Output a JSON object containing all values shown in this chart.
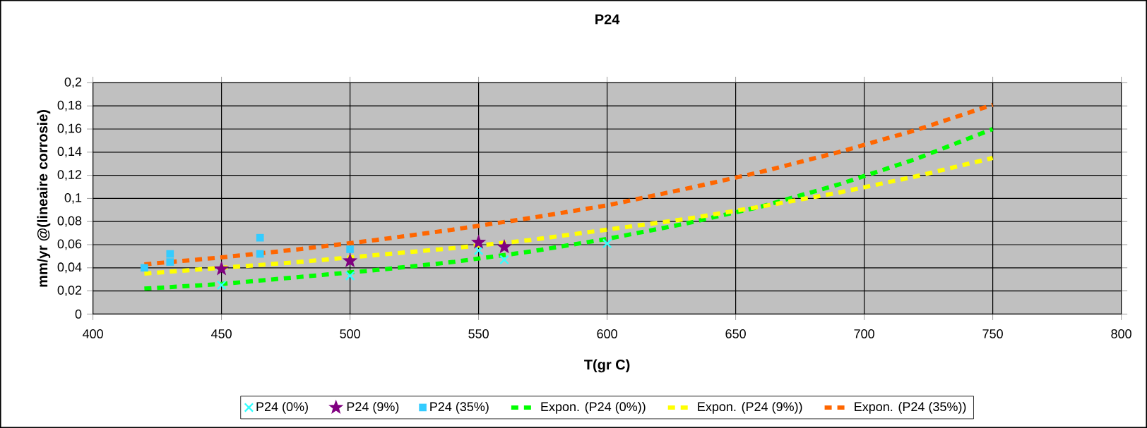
{
  "chart_data": {
    "type": "scatter",
    "title": "P24",
    "xlabel": "T(gr C)",
    "ylabel": "mm/yr @(lineaire corrosie)",
    "xlim": [
      400,
      800
    ],
    "ylim": [
      0,
      0.2
    ],
    "xticks": [
      400,
      450,
      500,
      550,
      600,
      650,
      700,
      750,
      800
    ],
    "yticks": [
      {
        "value": 0,
        "label": "0"
      },
      {
        "value": 0.02,
        "label": "0,02"
      },
      {
        "value": 0.04,
        "label": "0,04"
      },
      {
        "value": 0.06,
        "label": "0,06"
      },
      {
        "value": 0.08,
        "label": "0,08"
      },
      {
        "value": 0.1,
        "label": "0,1"
      },
      {
        "value": 0.12,
        "label": "0,12"
      },
      {
        "value": 0.14,
        "label": "0,14"
      },
      {
        "value": 0.16,
        "label": "0,16"
      },
      {
        "value": 0.18,
        "label": "0,18"
      },
      {
        "value": 0.2,
        "label": "0,2"
      }
    ],
    "grid": true,
    "legend": "bottom",
    "series": [
      {
        "name": "P24 (0%)",
        "type": "scatter",
        "marker": "cross",
        "color": "#33ffff",
        "x": [
          450,
          500,
          550,
          560,
          600
        ],
        "values": [
          0.025,
          0.033,
          0.055,
          0.047,
          0.061
        ]
      },
      {
        "name": "P24 (9%)",
        "type": "scatter",
        "marker": "star",
        "color": "#800080",
        "x": [
          450,
          500,
          550,
          560
        ],
        "values": [
          0.039,
          0.046,
          0.062,
          0.058
        ]
      },
      {
        "name": "P24 (35%)",
        "type": "scatter",
        "marker": "square",
        "color": "#33ccff",
        "x": [
          420,
          430,
          430,
          465,
          465,
          500
        ],
        "values": [
          0.04,
          0.052,
          0.045,
          0.066,
          0.052,
          0.056
        ]
      },
      {
        "name": "Expon. (P24 (0%))",
        "type": "line",
        "marker": "none",
        "line_style": "dashed",
        "color": "#00ff00",
        "x": [
          420,
          450,
          480,
          510,
          540,
          570,
          600,
          630,
          660,
          690,
          720,
          750
        ],
        "values": [
          0.022,
          0.026,
          0.032,
          0.038,
          0.045,
          0.054,
          0.065,
          0.078,
          0.093,
          0.112,
          0.134,
          0.16
        ]
      },
      {
        "name": "Expon. (P24 (9%))",
        "type": "line",
        "marker": "none",
        "line_style": "dashed",
        "color": "#ffff00",
        "x": [
          420,
          450,
          480,
          510,
          540,
          570,
          600,
          630,
          660,
          690,
          720,
          750
        ],
        "values": [
          0.035,
          0.04,
          0.045,
          0.051,
          0.057,
          0.064,
          0.073,
          0.082,
          0.093,
          0.105,
          0.119,
          0.135
        ]
      },
      {
        "name": "Expon. (P24 (35%))",
        "type": "line",
        "marker": "none",
        "line_style": "dashed",
        "color": "#ff6600",
        "x": [
          420,
          450,
          480,
          510,
          540,
          570,
          600,
          630,
          660,
          690,
          720,
          750
        ],
        "values": [
          0.043,
          0.049,
          0.056,
          0.064,
          0.073,
          0.083,
          0.094,
          0.108,
          0.123,
          0.14,
          0.159,
          0.181
        ]
      }
    ]
  }
}
